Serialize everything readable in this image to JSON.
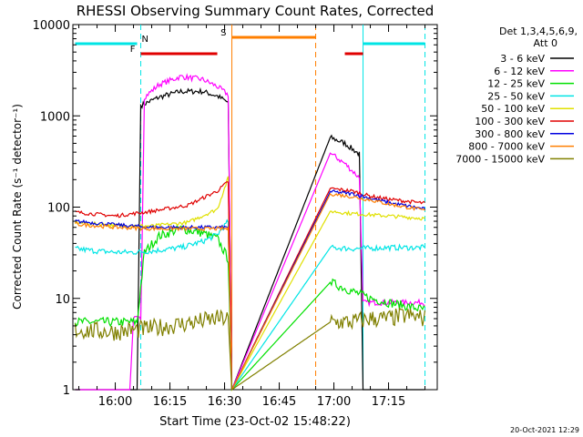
{
  "chart_data": {
    "type": "line",
    "title": "RHESSI Observing Summary Count Rates, Corrected",
    "xlabel": "Start Time (23-Oct-02 15:48:22)",
    "ylabel": "Corrected Count Rate (s⁻¹ detector⁻¹)",
    "yscale": "log",
    "ylim": [
      1,
      10000
    ],
    "xlim": [
      "15:48:22",
      "17:28:22"
    ],
    "x_ticks": [
      "16:00",
      "16:15",
      "16:30",
      "16:45",
      "17:00",
      "17:15"
    ],
    "y_ticks": [
      "1",
      "10",
      "100",
      "1000",
      "10000"
    ],
    "det_label": "Det 1,3,4,5,6,9,",
    "att_label": "Att 0",
    "footer_date": "20-Oct-2021 12:29",
    "grid": false,
    "legend_position": "top-right",
    "flags": [
      {
        "label": "N",
        "color": "#00e5e5",
        "segments": [
          [
            "15:49",
            "16:06"
          ],
          [
            "17:08",
            "17:25"
          ]
        ]
      },
      {
        "label": "F",
        "color": "#e00000",
        "segments": [
          [
            "16:07",
            "16:28"
          ],
          [
            "17:03",
            "17:08"
          ]
        ]
      },
      {
        "label": "S",
        "color": "#ff7f00",
        "segments": [
          [
            "16:32",
            "16:55"
          ]
        ]
      }
    ],
    "boundaries": [
      {
        "time": "16:07",
        "color": "#00e5e5",
        "style": "dashed"
      },
      {
        "time": "16:32",
        "color": "#ff7f00",
        "style": "solid"
      },
      {
        "time": "16:55",
        "color": "#ff7f00",
        "style": "dashed"
      },
      {
        "time": "17:08",
        "color": "#00e5e5",
        "style": "solid"
      },
      {
        "time": "17:25",
        "color": "#00e5e5",
        "style": "dashed"
      }
    ],
    "series": [
      {
        "name": "3 - 6 keV",
        "color": "#000000",
        "noise": 0.03,
        "points": [
          [
            "15:49",
            1
          ],
          [
            "16:06",
            1
          ],
          [
            "16:07",
            1300
          ],
          [
            "16:12",
            1600
          ],
          [
            "16:18",
            1850
          ],
          [
            "16:24",
            1850
          ],
          [
            "16:28",
            1650
          ],
          [
            "16:31",
            1400
          ],
          [
            "16:32",
            1
          ],
          [
            "16:59",
            580
          ],
          [
            "17:03",
            500
          ],
          [
            "17:07",
            380
          ],
          [
            "17:08",
            1
          ],
          [
            "17:25",
            1
          ]
        ]
      },
      {
        "name": "6 - 12 keV",
        "color": "#ff00ff",
        "noise": 0.03,
        "points": [
          [
            "15:49",
            1
          ],
          [
            "16:04",
            1
          ],
          [
            "16:05",
            6
          ],
          [
            "16:07",
            6
          ],
          [
            "16:08",
            1600
          ],
          [
            "16:12",
            2200
          ],
          [
            "16:18",
            2700
          ],
          [
            "16:24",
            2500
          ],
          [
            "16:28",
            2100
          ],
          [
            "16:31",
            1700
          ],
          [
            "16:32",
            1
          ],
          [
            "16:59",
            390
          ],
          [
            "17:03",
            300
          ],
          [
            "17:07",
            210
          ],
          [
            "17:08",
            9
          ],
          [
            "17:25",
            9
          ]
        ]
      },
      {
        "name": "12 - 25 keV",
        "color": "#00e000",
        "noise": 0.05,
        "points": [
          [
            "15:49",
            5.5
          ],
          [
            "16:06",
            5.5
          ],
          [
            "16:08",
            32
          ],
          [
            "16:12",
            48
          ],
          [
            "16:18",
            58
          ],
          [
            "16:24",
            52
          ],
          [
            "16:28",
            45
          ],
          [
            "16:31",
            27
          ],
          [
            "16:32",
            1
          ],
          [
            "16:59",
            15
          ],
          [
            "17:05",
            12
          ],
          [
            "17:10",
            10
          ],
          [
            "17:15",
            9
          ],
          [
            "17:25",
            7.5
          ]
        ]
      },
      {
        "name": "25 - 50 keV",
        "color": "#00e5e5",
        "noise": 0.03,
        "points": [
          [
            "15:49",
            35
          ],
          [
            "15:55",
            33
          ],
          [
            "16:00",
            32
          ],
          [
            "16:05",
            32
          ],
          [
            "16:10",
            33
          ],
          [
            "16:18",
            36
          ],
          [
            "16:24",
            42
          ],
          [
            "16:28",
            50
          ],
          [
            "16:31",
            70
          ],
          [
            "16:32",
            1
          ],
          [
            "16:59",
            36
          ],
          [
            "17:05",
            35
          ],
          [
            "17:15",
            36
          ],
          [
            "17:25",
            36
          ]
        ]
      },
      {
        "name": "50 - 100 keV",
        "color": "#e0e000",
        "noise": 0.02,
        "points": [
          [
            "15:49",
            68
          ],
          [
            "16:00",
            63
          ],
          [
            "16:10",
            62
          ],
          [
            "16:20",
            68
          ],
          [
            "16:28",
            95
          ],
          [
            "16:31",
            210
          ],
          [
            "16:32",
            1
          ],
          [
            "16:59",
            90
          ],
          [
            "17:05",
            85
          ],
          [
            "17:15",
            80
          ],
          [
            "17:25",
            75
          ]
        ]
      },
      {
        "name": "100 - 300 keV",
        "color": "#e00000",
        "noise": 0.02,
        "points": [
          [
            "15:49",
            88
          ],
          [
            "16:00",
            80
          ],
          [
            "16:10",
            90
          ],
          [
            "16:20",
            105
          ],
          [
            "16:28",
            150
          ],
          [
            "16:31",
            190
          ],
          [
            "16:32",
            1
          ],
          [
            "16:59",
            160
          ],
          [
            "17:05",
            150
          ],
          [
            "17:10",
            132
          ],
          [
            "17:15",
            122
          ],
          [
            "17:25",
            110
          ]
        ]
      },
      {
        "name": "300 - 800 keV",
        "color": "#0000e0",
        "noise": 0.02,
        "points": [
          [
            "15:49",
            70
          ],
          [
            "16:00",
            64
          ],
          [
            "16:10",
            60
          ],
          [
            "16:20",
            60
          ],
          [
            "16:28",
            60
          ],
          [
            "16:31",
            60
          ],
          [
            "16:32",
            1
          ],
          [
            "16:59",
            148
          ],
          [
            "17:05",
            140
          ],
          [
            "17:10",
            125
          ],
          [
            "17:15",
            112
          ],
          [
            "17:25",
            95
          ]
        ]
      },
      {
        "name": "800 - 7000 keV",
        "color": "#ff7f00",
        "noise": 0.02,
        "points": [
          [
            "15:49",
            65
          ],
          [
            "16:00",
            60
          ],
          [
            "16:10",
            58
          ],
          [
            "16:20",
            58
          ],
          [
            "16:28",
            58
          ],
          [
            "16:31",
            58
          ],
          [
            "16:32",
            1
          ],
          [
            "16:59",
            140
          ],
          [
            "17:05",
            130
          ],
          [
            "17:10",
            120
          ],
          [
            "17:15",
            108
          ],
          [
            "17:25",
            92
          ]
        ]
      },
      {
        "name": "7000 - 15000 keV",
        "color": "#808000",
        "noise": 0.1,
        "points": [
          [
            "15:49",
            4.5
          ],
          [
            "16:00",
            4.3
          ],
          [
            "16:05",
            4.5
          ],
          [
            "16:10",
            4.7
          ],
          [
            "16:15",
            5
          ],
          [
            "16:22",
            5.5
          ],
          [
            "16:28",
            6
          ],
          [
            "16:31",
            6
          ],
          [
            "16:32",
            1
          ],
          [
            "16:59",
            5.5
          ],
          [
            "17:05",
            5.5
          ],
          [
            "17:10",
            6
          ],
          [
            "17:15",
            6
          ],
          [
            "17:20",
            6.5
          ],
          [
            "17:25",
            6
          ]
        ]
      }
    ]
  }
}
